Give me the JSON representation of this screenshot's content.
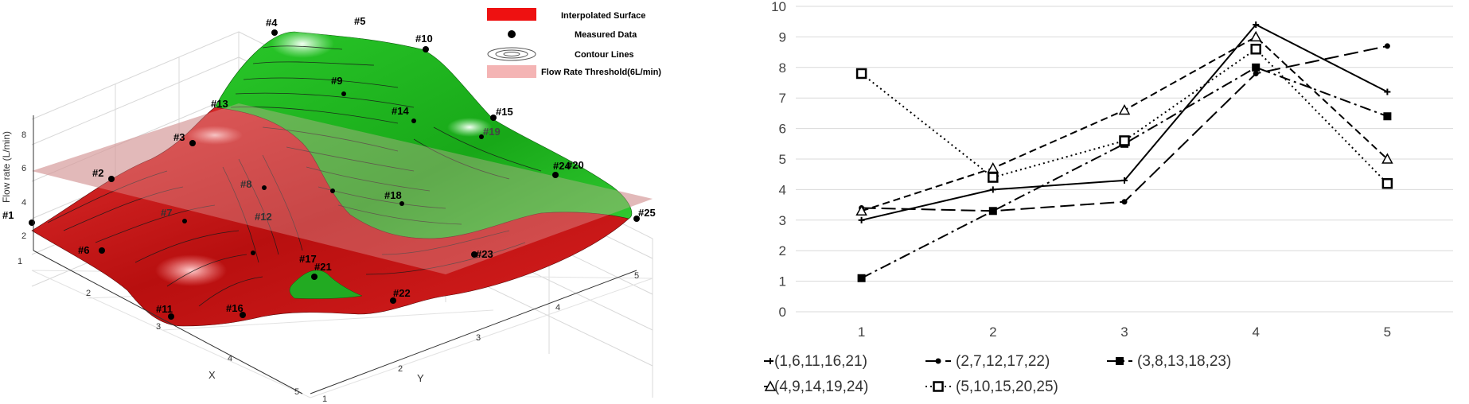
{
  "surface_plot": {
    "type": "surface3d",
    "axis_labels": {
      "x": "X",
      "y": "Y",
      "z": "Flow rate (L/min)"
    },
    "x_ticks": [
      "1",
      "2",
      "3",
      "4",
      "5"
    ],
    "y_ticks": [
      "1",
      "2",
      "3",
      "4",
      "5"
    ],
    "z_ticks": [
      "2",
      "4",
      "6",
      "8"
    ],
    "legend": {
      "placement": "top-right",
      "entries": [
        {
          "label": "Interpolated Surface",
          "symbol": "red-box",
          "color": "#ee1111"
        },
        {
          "label": "Measured Data",
          "symbol": "black-dot",
          "color": "#000000"
        },
        {
          "label": "Contour Lines",
          "symbol": "rings",
          "color": "#555555"
        },
        {
          "label": "Flow Rate Threshold(6L/min)",
          "symbol": "pink-box",
          "color": "#f4b4b4"
        }
      ]
    },
    "threshold": 6,
    "points": [
      "#1",
      "#2",
      "#3",
      "#4",
      "#5",
      "#6",
      "#7",
      "#8",
      "#9",
      "#10",
      "#11",
      "#12",
      "#13",
      "#14",
      "#15",
      "#16",
      "#17",
      "#18",
      "#19",
      "#20",
      "#21",
      "#22",
      "#23",
      "#24",
      "#25"
    ],
    "colors": {
      "below": "#cc1414",
      "above": "#22bb22",
      "threshold_plane": "#c98a8a"
    }
  },
  "chart_data": {
    "type": "line",
    "categories": [
      "1",
      "2",
      "3",
      "4",
      "5"
    ],
    "ylim": [
      0,
      10
    ],
    "y_ticks": [
      "0",
      "1",
      "2",
      "3",
      "4",
      "5",
      "6",
      "7",
      "8",
      "9",
      "10"
    ],
    "title": "",
    "xlabel": "",
    "ylabel": "",
    "series": [
      {
        "name": "(1,6,11,16,21)",
        "values": [
          3.0,
          4.0,
          4.3,
          9.4,
          7.2
        ],
        "dash": "solid",
        "marker": "plus"
      },
      {
        "name": "(2,7,12,17,22)",
        "values": [
          3.4,
          3.3,
          3.6,
          7.8,
          8.7
        ],
        "dash": "longdash",
        "marker": "dot"
      },
      {
        "name": "(3,8,13,18,23)",
        "values": [
          1.1,
          3.3,
          5.5,
          8.0,
          6.4
        ],
        "dash": "dashdot",
        "marker": "square"
      },
      {
        "name": "(4,9,14,19,24)",
        "values": [
          3.3,
          4.7,
          6.6,
          9.0,
          5.0
        ],
        "dash": "dash",
        "marker": "triangle"
      },
      {
        "name": "(5,10,15,20,25)",
        "values": [
          7.8,
          4.4,
          5.6,
          8.6,
          4.2
        ],
        "dash": "dot",
        "marker": "hollow-square"
      }
    ]
  }
}
